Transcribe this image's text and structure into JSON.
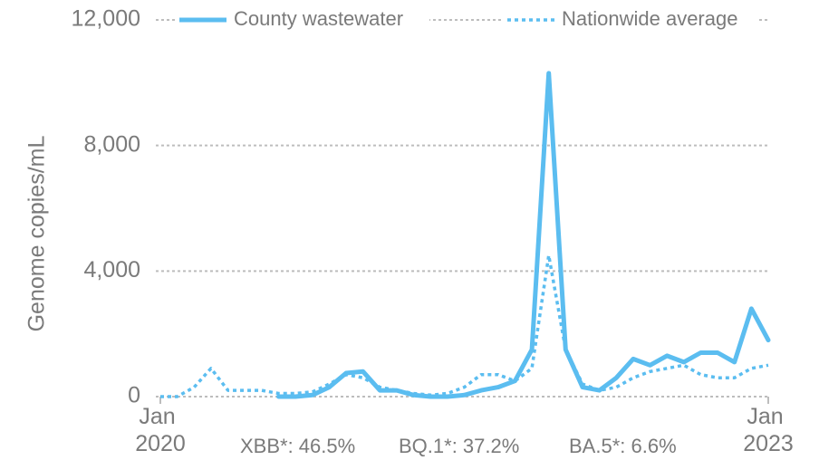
{
  "chart_data": {
    "type": "line",
    "y_label": "Genome copies/mL",
    "x": [
      "2020-01",
      "2020-02",
      "2020-03",
      "2020-04",
      "2020-05",
      "2020-06",
      "2020-07",
      "2020-08",
      "2020-09",
      "2020-10",
      "2020-11",
      "2020-12",
      "2021-01",
      "2021-02",
      "2021-03",
      "2021-04",
      "2021-05",
      "2021-06",
      "2021-07",
      "2021-08",
      "2021-09",
      "2021-10",
      "2021-11",
      "2021-12",
      "2022-01",
      "2022-02",
      "2022-03",
      "2022-04",
      "2022-05",
      "2022-06",
      "2022-07",
      "2022-08",
      "2022-09",
      "2022-10",
      "2022-11",
      "2022-12",
      "2023-01"
    ],
    "xlim": [
      "2020-01",
      "2023-01"
    ],
    "xticks": [
      {
        "value": "2020-01",
        "label": "Jan 2020"
      },
      {
        "value": "2023-01",
        "label": "Jan 2023"
      }
    ],
    "ylim": [
      0,
      12000
    ],
    "yticks": [
      0,
      {
        "value": 4000,
        "label": "4,000"
      },
      {
        "value": 8000,
        "label": "8,000"
      },
      {
        "value": 12000,
        "label": "12,000"
      }
    ],
    "grid": true,
    "legend": "top",
    "series": [
      {
        "name": "County wastewater",
        "color": "#5bbdf0",
        "style": "solid",
        "values": [
          null,
          null,
          null,
          null,
          null,
          null,
          null,
          0,
          0,
          50,
          300,
          750,
          800,
          200,
          200,
          50,
          0,
          0,
          50,
          200,
          300,
          500,
          1500,
          10300,
          1500,
          300,
          200,
          600,
          1200,
          1000,
          1300,
          1100,
          1400,
          1400,
          1100,
          2800,
          1800
        ]
      },
      {
        "name": "Nationwide average",
        "color": "#5bbdf0",
        "style": "dotted",
        "values": [
          0,
          0,
          300,
          900,
          200,
          200,
          200,
          100,
          100,
          150,
          400,
          700,
          600,
          300,
          200,
          100,
          50,
          100,
          300,
          700,
          700,
          500,
          900,
          4500,
          1500,
          400,
          200,
          300,
          600,
          800,
          900,
          1000,
          700,
          600,
          600,
          900,
          1000
        ]
      }
    ],
    "annotations": [
      "XBB*: 46.5%",
      "BQ.1*: 37.2%",
      "BA.5*: 6.6%"
    ]
  }
}
